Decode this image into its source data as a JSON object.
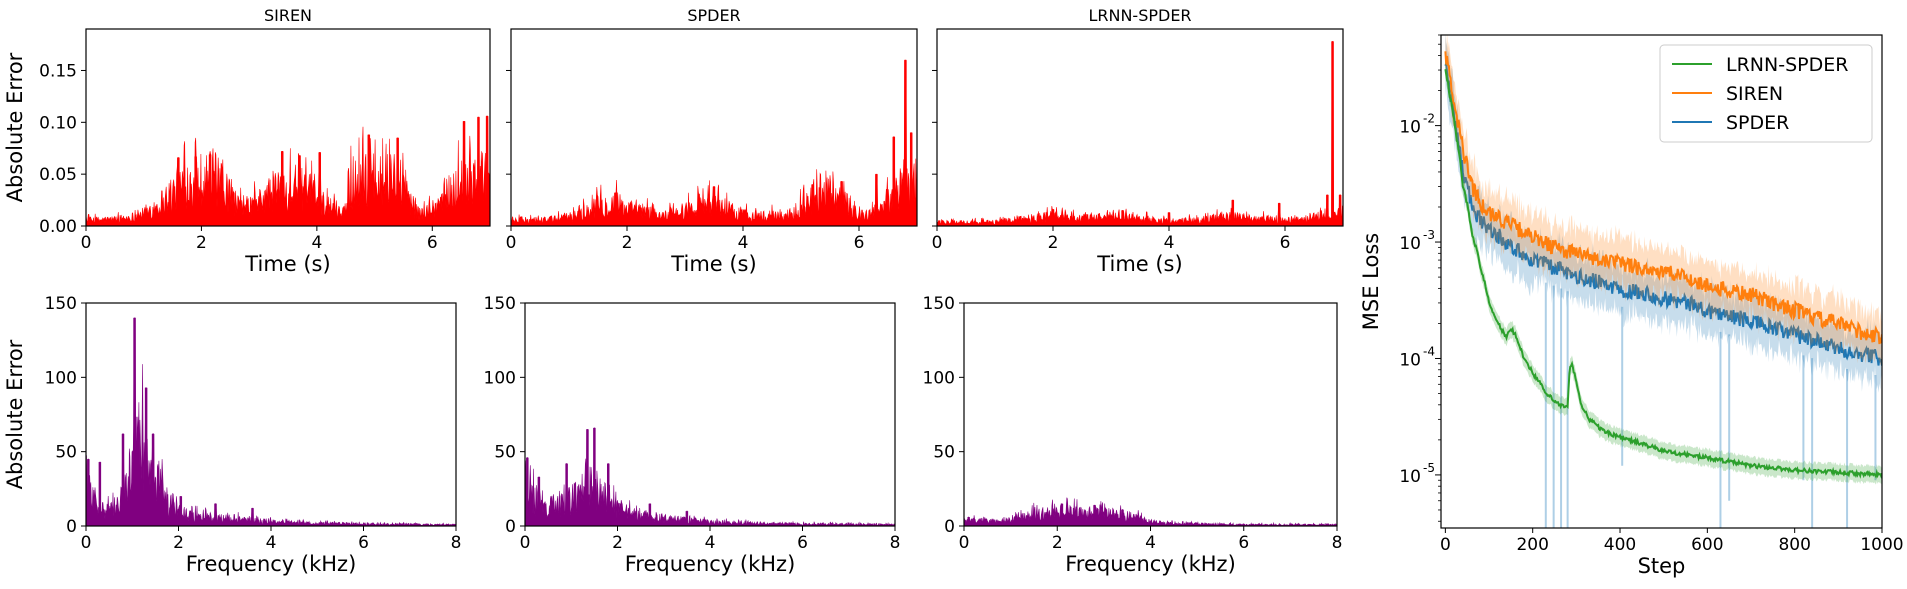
{
  "chart_data": [
    {
      "type": "area",
      "panel": "siren_time",
      "title": "SIREN",
      "xlabel": "Time (s)",
      "ylabel": "Absolute Error",
      "xlim": [
        0,
        7
      ],
      "ylim": [
        0,
        0.19
      ],
      "xticks": [
        0,
        2,
        4,
        6
      ],
      "yticks": [
        0.0,
        0.05,
        0.1,
        0.15
      ],
      "ytick_labels": [
        "0.00",
        "0.05",
        "0.10",
        "0.15"
      ],
      "color": "#ff0000",
      "envelope": {
        "x": [
          0,
          0.5,
          0.9,
          1.2,
          1.5,
          1.7,
          2.0,
          2.2,
          2.4,
          2.7,
          3.0,
          3.3,
          3.6,
          3.9,
          4.2,
          4.5,
          4.6,
          4.9,
          5.2,
          5.5,
          5.8,
          6.0,
          6.3,
          6.6,
          7.0
        ],
        "y": [
          0.006,
          0.007,
          0.01,
          0.02,
          0.035,
          0.045,
          0.05,
          0.052,
          0.038,
          0.018,
          0.025,
          0.04,
          0.042,
          0.035,
          0.02,
          0.015,
          0.045,
          0.05,
          0.045,
          0.035,
          0.012,
          0.018,
          0.035,
          0.05,
          0.055
        ]
      },
      "peaks": [
        [
          1.6,
          0.066
        ],
        [
          1.9,
          0.067
        ],
        [
          2.15,
          0.069
        ],
        [
          3.4,
          0.072
        ],
        [
          3.7,
          0.068
        ],
        [
          4.05,
          0.071
        ],
        [
          4.9,
          0.088
        ],
        [
          5.4,
          0.085
        ],
        [
          6.55,
          0.101
        ],
        [
          6.8,
          0.105
        ],
        [
          6.95,
          0.106
        ]
      ]
    },
    {
      "type": "area",
      "panel": "spder_time",
      "title": "SPDER",
      "xlabel": "Time (s)",
      "ylabel": "",
      "xlim": [
        0,
        7
      ],
      "ylim": [
        0,
        0.19
      ],
      "xticks": [
        0,
        2,
        4,
        6
      ],
      "yticks": [
        0.0,
        0.05,
        0.1,
        0.15
      ],
      "color": "#ff0000",
      "envelope": {
        "x": [
          0,
          0.8,
          1.2,
          1.5,
          1.8,
          2.0,
          2.3,
          2.6,
          3.0,
          3.3,
          3.6,
          4.0,
          4.4,
          4.8,
          5.2,
          5.5,
          5.8,
          6.1,
          6.4,
          6.6,
          6.8,
          7.0
        ],
        "y": [
          0.006,
          0.007,
          0.012,
          0.02,
          0.024,
          0.018,
          0.015,
          0.01,
          0.016,
          0.024,
          0.02,
          0.012,
          0.01,
          0.012,
          0.026,
          0.034,
          0.022,
          0.01,
          0.018,
          0.035,
          0.045,
          0.04
        ]
      },
      "peaks": [
        [
          1.8,
          0.032
        ],
        [
          3.5,
          0.038
        ],
        [
          5.2,
          0.04
        ],
        [
          5.7,
          0.043
        ],
        [
          6.3,
          0.05
        ],
        [
          6.6,
          0.086
        ],
        [
          6.8,
          0.16
        ],
        [
          6.9,
          0.09
        ]
      ]
    },
    {
      "type": "area",
      "panel": "lrnn_time",
      "title": "LRNN-SPDER",
      "xlabel": "Time (s)",
      "ylabel": "",
      "xlim": [
        0,
        7
      ],
      "ylim": [
        0,
        0.19
      ],
      "xticks": [
        0,
        2,
        4,
        6
      ],
      "yticks": [
        0.0,
        0.05,
        0.1,
        0.15
      ],
      "color": "#ff0000",
      "envelope": {
        "x": [
          0,
          1.0,
          1.5,
          2.0,
          2.5,
          3.0,
          3.5,
          4.0,
          4.5,
          5.0,
          5.5,
          6.0,
          6.5,
          6.7,
          6.8,
          7.0
        ],
        "y": [
          0.004,
          0.004,
          0.008,
          0.01,
          0.008,
          0.01,
          0.008,
          0.005,
          0.006,
          0.01,
          0.008,
          0.006,
          0.008,
          0.012,
          0.01,
          0.014
        ]
      },
      "peaks": [
        [
          2.0,
          0.016
        ],
        [
          3.2,
          0.015
        ],
        [
          4.0,
          0.013
        ],
        [
          5.1,
          0.025
        ],
        [
          5.9,
          0.022
        ],
        [
          6.73,
          0.03
        ],
        [
          6.82,
          0.178
        ],
        [
          6.95,
          0.03
        ]
      ]
    },
    {
      "type": "area",
      "panel": "siren_freq",
      "title": "",
      "xlabel": "Frequency (kHz)",
      "ylabel": "Absolute Error",
      "xlim": [
        0,
        8
      ],
      "ylim": [
        0,
        150
      ],
      "xticks": [
        0,
        2,
        4,
        6,
        8
      ],
      "yticks": [
        0,
        50,
        100,
        150
      ],
      "color": "#800080",
      "envelope": {
        "x": [
          0,
          0.2,
          0.5,
          0.7,
          0.9,
          1.0,
          1.2,
          1.4,
          1.6,
          1.8,
          2.0,
          2.4,
          2.8,
          3.2,
          4.0,
          5.0,
          6.0,
          8.0
        ],
        "y": [
          30,
          15,
          10,
          14,
          30,
          55,
          60,
          45,
          30,
          14,
          10,
          7,
          6,
          5,
          3,
          2,
          1.5,
          1
        ]
      },
      "peaks": [
        [
          0.05,
          45
        ],
        [
          0.3,
          43
        ],
        [
          0.8,
          62
        ],
        [
          1.05,
          140
        ],
        [
          1.3,
          93
        ],
        [
          1.45,
          62
        ],
        [
          2.05,
          20
        ],
        [
          2.8,
          15
        ],
        [
          3.6,
          12
        ]
      ]
    },
    {
      "type": "area",
      "panel": "spder_freq",
      "title": "",
      "xlabel": "Frequency (kHz)",
      "ylabel": "",
      "xlim": [
        0,
        8
      ],
      "ylim": [
        0,
        150
      ],
      "xticks": [
        0,
        2,
        4,
        6,
        8
      ],
      "yticks": [
        0,
        50,
        100,
        150
      ],
      "color": "#800080",
      "envelope": {
        "x": [
          0,
          0.3,
          0.6,
          0.9,
          1.2,
          1.5,
          1.7,
          2.0,
          2.4,
          2.8,
          3.2,
          4.0,
          5.0,
          6.0,
          8.0
        ],
        "y": [
          28,
          14,
          12,
          18,
          26,
          30,
          22,
          12,
          8,
          6,
          5,
          3,
          2,
          1.5,
          1
        ]
      },
      "peaks": [
        [
          0.05,
          46
        ],
        [
          0.3,
          33
        ],
        [
          0.9,
          42
        ],
        [
          1.35,
          65
        ],
        [
          1.5,
          66
        ],
        [
          1.8,
          42
        ],
        [
          2.7,
          15
        ],
        [
          3.5,
          10
        ]
      ]
    },
    {
      "type": "area",
      "panel": "lrnn_freq",
      "title": "",
      "xlabel": "Frequency (kHz)",
      "ylabel": "",
      "xlim": [
        0,
        8
      ],
      "ylim": [
        0,
        150
      ],
      "xticks": [
        0,
        2,
        4,
        6,
        8
      ],
      "yticks": [
        0,
        50,
        100,
        150
      ],
      "color": "#800080",
      "envelope": {
        "x": [
          0,
          0.5,
          1.0,
          1.5,
          2.0,
          2.5,
          3.0,
          3.5,
          3.8,
          4.2,
          5.0,
          6.0,
          8.0
        ],
        "y": [
          4,
          3.5,
          4,
          8,
          10,
          9,
          9,
          7,
          5,
          2,
          1.5,
          1,
          1
        ]
      },
      "peaks": [
        [
          0.1,
          6
        ],
        [
          2.1,
          15
        ],
        [
          2.8,
          14
        ],
        [
          3.4,
          11
        ]
      ]
    },
    {
      "type": "line",
      "panel": "mse_loss",
      "title": "",
      "xlabel": "Step",
      "ylabel": "MSE Loss",
      "xlim": [
        -10,
        1000
      ],
      "ylim": [
        3.5e-06,
        0.06
      ],
      "yscale": "log",
      "xticks": [
        0,
        200,
        400,
        600,
        800,
        1000
      ],
      "yticks": [
        1e-05,
        0.0001,
        0.001,
        0.01
      ],
      "ytick_labels": [
        "10",
        "10",
        "10",
        "10"
      ],
      "ytick_exponents": [
        "-5",
        "-4",
        "-3",
        "-2"
      ],
      "legend_position": "top-right",
      "series": [
        {
          "name": "LRNN-SPDER",
          "color": "#2ca02c",
          "x": [
            0,
            10,
            25,
            40,
            60,
            80,
            100,
            120,
            140,
            150,
            160,
            180,
            200,
            230,
            260,
            280,
            285,
            290,
            295,
            310,
            330,
            360,
            400,
            500,
            600,
            700,
            800,
            900,
            1000
          ],
          "y": [
            0.03,
            0.018,
            0.008,
            0.003,
            0.0012,
            0.0006,
            0.0003,
            0.0002,
            0.00015,
            0.00018,
            0.00016,
            0.0001,
            7.5e-05,
            5e-05,
            4e-05,
            3.8e-05,
            8e-05,
            9e-05,
            7.5e-05,
            4e-05,
            3e-05,
            2.4e-05,
            2.1e-05,
            1.6e-05,
            1.4e-05,
            1.2e-05,
            1.1e-05,
            1.05e-05,
            1e-05
          ]
        },
        {
          "name": "SIREN",
          "color": "#ff7f0e",
          "x": [
            0,
            10,
            25,
            40,
            60,
            80,
            100,
            150,
            200,
            250,
            300,
            350,
            400,
            450,
            500,
            550,
            600,
            650,
            700,
            750,
            800,
            850,
            900,
            950,
            1000
          ],
          "y": [
            0.04,
            0.025,
            0.012,
            0.006,
            0.003,
            0.0022,
            0.0018,
            0.0014,
            0.0011,
            0.0009,
            0.0008,
            0.0007,
            0.00065,
            0.0006,
            0.00055,
            0.0005,
            0.00042,
            0.00038,
            0.00035,
            0.0003,
            0.00026,
            0.00022,
            0.0002,
            0.00017,
            0.00015
          ]
        },
        {
          "name": "SPDER",
          "color": "#1f77b4",
          "x": [
            0,
            10,
            25,
            40,
            60,
            80,
            100,
            150,
            200,
            250,
            300,
            350,
            400,
            450,
            500,
            550,
            600,
            650,
            700,
            750,
            800,
            850,
            900,
            950,
            1000
          ],
          "y": [
            0.035,
            0.02,
            0.009,
            0.004,
            0.002,
            0.0015,
            0.0013,
            0.0009,
            0.0007,
            0.0006,
            0.0005,
            0.00045,
            0.0004,
            0.00037,
            0.00033,
            0.0003,
            0.00026,
            0.00023,
            0.00021,
            0.00018,
            0.00016,
            0.00014,
            0.00012,
            0.00011,
            0.0001
          ]
        }
      ],
      "spikes": [
        [
          230,
          3.5e-06
        ],
        [
          248,
          3.5e-06
        ],
        [
          265,
          3.5e-06
        ],
        [
          280,
          3.5e-06
        ],
        [
          405,
          1.2e-05
        ],
        [
          630,
          3.5e-06
        ],
        [
          650,
          6e-06
        ],
        [
          820,
          9e-06
        ],
        [
          840,
          3.5e-06
        ],
        [
          920,
          3.5e-06
        ],
        [
          985,
          9e-06
        ]
      ]
    }
  ]
}
